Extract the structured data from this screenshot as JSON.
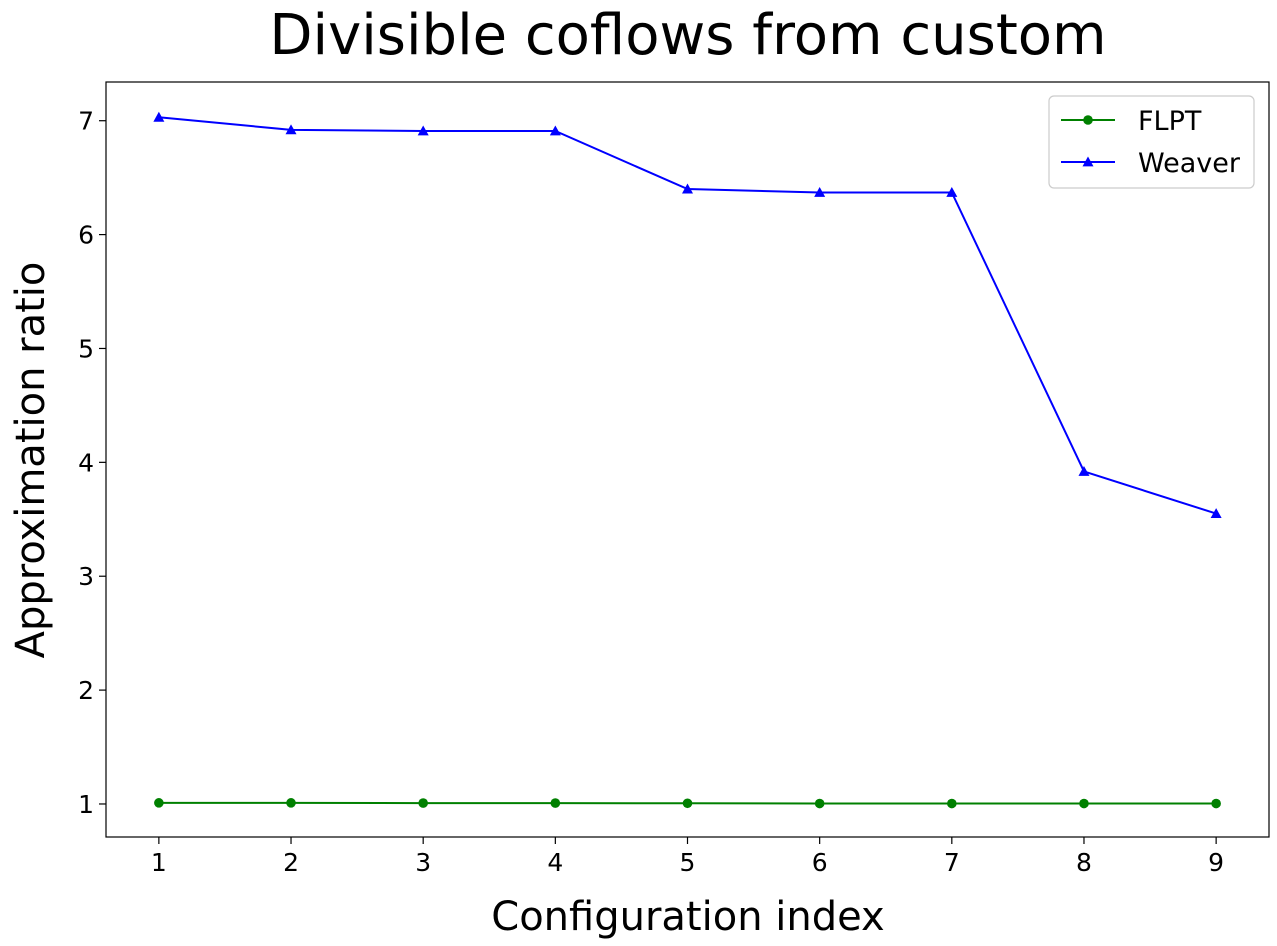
{
  "chart_data": {
    "type": "line",
    "title": "Divisible coflows from custom",
    "xlabel": "Configuration index",
    "ylabel": "Approximation ratio",
    "x": [
      1,
      2,
      3,
      4,
      5,
      6,
      7,
      8,
      9
    ],
    "xlim": [
      0.6,
      9.4
    ],
    "ylim": [
      0.71,
      7.34
    ],
    "xticks": [
      1,
      2,
      3,
      4,
      5,
      6,
      7,
      8,
      9
    ],
    "yticks": [
      1,
      2,
      3,
      4,
      5,
      6,
      7
    ],
    "grid": false,
    "legend_position": "top-right",
    "series": [
      {
        "name": "FLPT",
        "color": "#008000",
        "marker": "circle",
        "values": [
          1.01,
          1.01,
          1.008,
          1.008,
          1.006,
          1.004,
          1.004,
          1.004,
          1.004
        ]
      },
      {
        "name": "Weaver",
        "color": "#0000ff",
        "marker": "triangle",
        "values": [
          7.03,
          6.92,
          6.91,
          6.91,
          6.4,
          6.37,
          6.37,
          3.92,
          3.55
        ]
      }
    ]
  }
}
